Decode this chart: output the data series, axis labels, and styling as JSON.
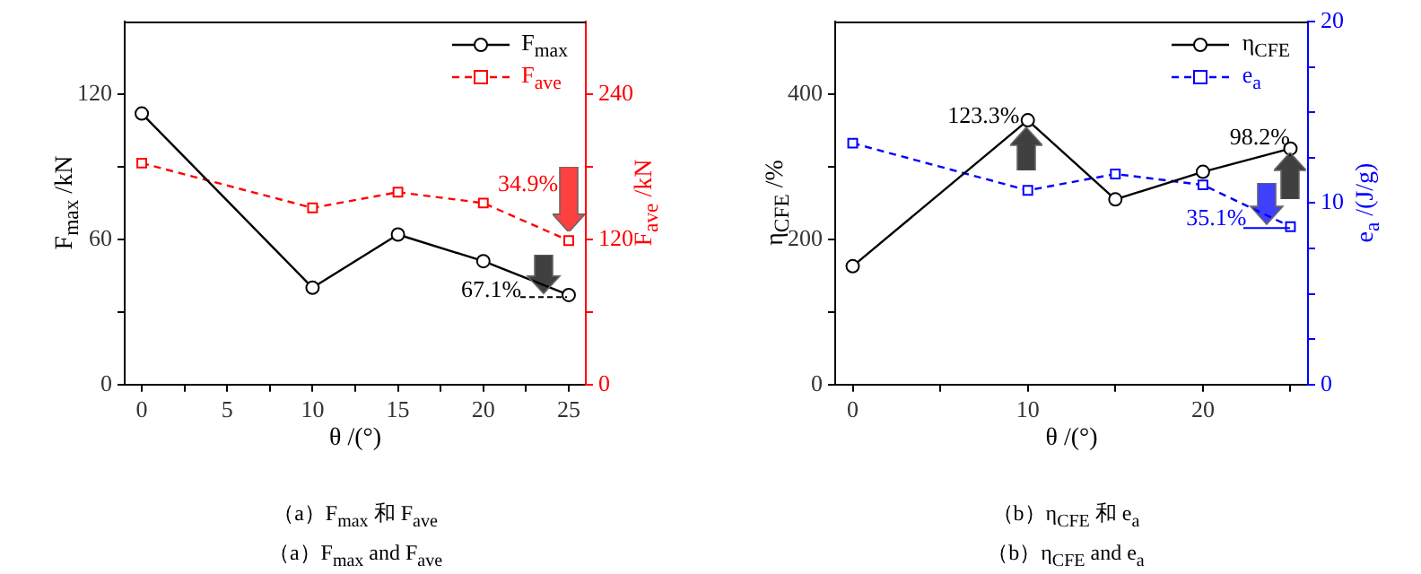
{
  "chart_data": [
    {
      "type": "line",
      "title": "（a）F$_{max}$ 和 F$_{ave}$",
      "subtitle": "（a）F$_{max}$ and F$_{ave}$",
      "xlabel": "θ /(°)",
      "ylabel": "F$_{max}$ /kN",
      "y2label": "F$_{ave}$ /kN",
      "x": [
        0,
        10,
        15,
        20,
        25
      ],
      "series": [
        {
          "name": "F$_{max}$",
          "color": "#000000",
          "values": [
            112,
            40,
            62,
            51,
            37
          ],
          "marker": "circle",
          "line_style": "solid"
        },
        {
          "name": "F$_{ave}$",
          "color": "#ff0000",
          "values": [
            183,
            146,
            159,
            150,
            119
          ],
          "axis": "y2",
          "marker": "square",
          "line_style": "dashed"
        }
      ],
      "xlim": [
        -1,
        26
      ],
      "xticks": [
        0,
        {
          "value": 2.5,
          "label": null
        },
        5,
        {
          "value": 7.5,
          "label": null
        },
        10,
        {
          "value": 12.5,
          "label": null
        },
        15,
        {
          "value": 17.5,
          "label": null
        },
        20,
        {
          "value": 22.5,
          "label": null
        },
        25
      ],
      "ylim": [
        0,
        150
      ],
      "yticks": [
        0,
        {
          "value": 30,
          "label": null
        },
        60,
        {
          "value": 90,
          "label": null
        },
        120
      ],
      "y2lim": [
        0,
        300
      ],
      "y2ticks": [
        0,
        {
          "value": 60,
          "label": null
        },
        120,
        {
          "value": 180,
          "label": null
        },
        240
      ],
      "annotations": [
        "67.1%",
        "34.9%"
      ],
      "legend": "top right",
      "grid": false
    },
    {
      "type": "line",
      "title": "（b）η$_{CFE}$ 和 e$_{a}$",
      "subtitle": "（b）η$_{CFE}$ and e$_{a}$",
      "xlabel": "θ /(°)",
      "ylabel": "η$_{CFE}$ /%",
      "y2label": "e$_{a}$ /(J/g)",
      "x": [
        0,
        10,
        15,
        20,
        25
      ],
      "series": [
        {
          "name": "η$_{CFE}$",
          "color": "#000000",
          "values": [
            163,
            364,
            255,
            293,
            325
          ],
          "marker": "circle",
          "line_style": "solid"
        },
        {
          "name": "e$_{a}$",
          "color": "#0000ff",
          "values": [
            13.3,
            10.7,
            11.6,
            11.0,
            8.7
          ],
          "axis": "y2",
          "marker": "square",
          "line_style": "dashed"
        }
      ],
      "xlim": [
        -1,
        26
      ],
      "xticks": [
        0,
        {
          "value": 5,
          "label": null
        },
        10,
        {
          "value": 15,
          "label": null
        },
        20,
        {
          "value": 25,
          "label": null
        }
      ],
      "ylim": [
        0,
        500
      ],
      "yticks": [
        0,
        {
          "value": 100,
          "label": null
        },
        200,
        {
          "value": 300,
          "label": null
        },
        400
      ],
      "y2lim": [
        0,
        20
      ],
      "y2ticks": [
        0,
        {
          "value": 2.5,
          "label": null
        },
        {
          "value": 5,
          "label": null
        },
        {
          "value": 7.5,
          "label": null
        },
        10,
        {
          "value": 12.5,
          "label": null
        },
        {
          "value": 15,
          "label": null
        },
        {
          "value": 17.5,
          "label": null
        },
        20
      ],
      "annotations": [
        "123.3%",
        "98.2%",
        "35.1%"
      ],
      "legend": "top right",
      "grid": false
    }
  ]
}
